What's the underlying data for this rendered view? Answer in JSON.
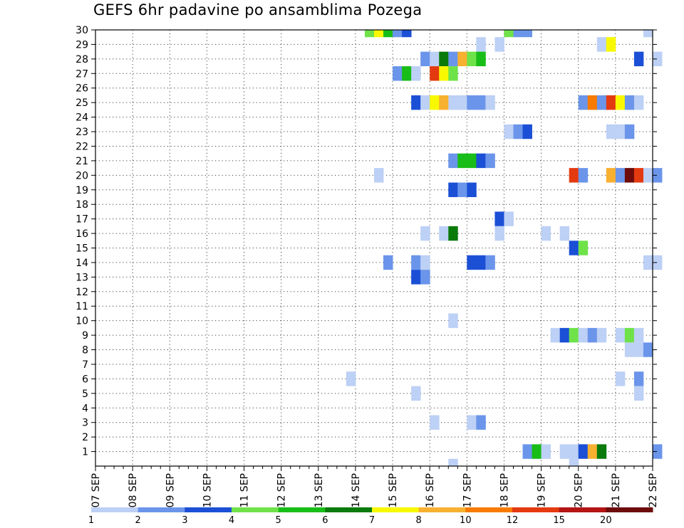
{
  "chart_data": {
    "type": "heatmap",
    "title": "GEFS 6hr padavine po ansamblima Pozega",
    "x_ticks": [
      "07 SEP",
      "08 SEP",
      "09 SEP",
      "10 SEP",
      "11 SEP",
      "12 SEP",
      "13 SEP",
      "14 SEP",
      "15 SEP",
      "16 SEP",
      "17 SEP",
      "18 SEP",
      "19 SEP",
      "20 SEP",
      "21 SEP",
      "22 SEP"
    ],
    "x_unit_steps_per_day": 4,
    "y_ticks": [
      "1",
      "2",
      "3",
      "4",
      "5",
      "6",
      "7",
      "8",
      "9",
      "10",
      "11",
      "12",
      "13",
      "14",
      "15",
      "16",
      "17",
      "18",
      "19",
      "20",
      "21",
      "22",
      "23",
      "24",
      "25",
      "26",
      "27",
      "28",
      "29",
      "30"
    ],
    "y_range": [
      0,
      30
    ],
    "grid": true,
    "legend": {
      "placement": "bottom",
      "labels": [
        "1",
        "2",
        "3",
        "4",
        "5",
        "6",
        "7",
        "8",
        "10",
        "12",
        "15",
        "20"
      ],
      "colors": [
        "#bdd0f5",
        "#6b95ea",
        "#1b4fd6",
        "#6fe24a",
        "#18bd18",
        "#0a7a0a",
        "#f8f800",
        "#f8b030",
        "#f87b00",
        "#e43a10",
        "#b41414",
        "#6e0c0c"
      ]
    },
    "bin_colors": [
      "#bdd0f5",
      "#6b95ea",
      "#1b4fd6",
      "#6fe24a",
      "#18bd18",
      "#0a7a0a",
      "#f8f800",
      "#f8b030",
      "#f87b00",
      "#e43a10",
      "#b41414",
      "#6e0c0c"
    ],
    "cells": [
      [
        29,
        30,
        4
      ],
      [
        30,
        30,
        7
      ],
      [
        31,
        30,
        5
      ],
      [
        32,
        30,
        2
      ],
      [
        33,
        30,
        3
      ],
      [
        44,
        30,
        4
      ],
      [
        45,
        30,
        2
      ],
      [
        46,
        30,
        2
      ],
      [
        59,
        30,
        1
      ],
      [
        41,
        29,
        1
      ],
      [
        43,
        29,
        1
      ],
      [
        54,
        29,
        1
      ],
      [
        55,
        29,
        7
      ],
      [
        35,
        28,
        2
      ],
      [
        36,
        28,
        1
      ],
      [
        37,
        28,
        6
      ],
      [
        38,
        28,
        2
      ],
      [
        39,
        28,
        8
      ],
      [
        40,
        28,
        4
      ],
      [
        41,
        28,
        5
      ],
      [
        58,
        28,
        3
      ],
      [
        60,
        28,
        1
      ],
      [
        32,
        27,
        2
      ],
      [
        33,
        27,
        5
      ],
      [
        34,
        27,
        1
      ],
      [
        36,
        27,
        10
      ],
      [
        37,
        27,
        7
      ],
      [
        38,
        27,
        4
      ],
      [
        34,
        25,
        3
      ],
      [
        35,
        25,
        1
      ],
      [
        36,
        25,
        7
      ],
      [
        37,
        25,
        8
      ],
      [
        38,
        25,
        1
      ],
      [
        39,
        25,
        1
      ],
      [
        40,
        25,
        2
      ],
      [
        41,
        25,
        2
      ],
      [
        42,
        25,
        1
      ],
      [
        52,
        25,
        2
      ],
      [
        53,
        25,
        9
      ],
      [
        54,
        25,
        2
      ],
      [
        55,
        25,
        10
      ],
      [
        56,
        25,
        7
      ],
      [
        57,
        25,
        2
      ],
      [
        58,
        25,
        1
      ],
      [
        44,
        23,
        1
      ],
      [
        45,
        23,
        2
      ],
      [
        46,
        23,
        3
      ],
      [
        55,
        23,
        1
      ],
      [
        56,
        23,
        1
      ],
      [
        57,
        23,
        2
      ],
      [
        38,
        21,
        2
      ],
      [
        39,
        21,
        5
      ],
      [
        40,
        21,
        5
      ],
      [
        41,
        21,
        3
      ],
      [
        42,
        21,
        2
      ],
      [
        30,
        20,
        1
      ],
      [
        51,
        20,
        10
      ],
      [
        52,
        20,
        2
      ],
      [
        55,
        20,
        8
      ],
      [
        56,
        20,
        2
      ],
      [
        57,
        20,
        12
      ],
      [
        58,
        20,
        10
      ],
      [
        59,
        20,
        1
      ],
      [
        60,
        20,
        2
      ],
      [
        38,
        19,
        3
      ],
      [
        39,
        19,
        2
      ],
      [
        40,
        19,
        3
      ],
      [
        43,
        17,
        3
      ],
      [
        44,
        17,
        1
      ],
      [
        35,
        16,
        1
      ],
      [
        37,
        16,
        1
      ],
      [
        38,
        16,
        6
      ],
      [
        43,
        16,
        1
      ],
      [
        48,
        16,
        1
      ],
      [
        50,
        16,
        1
      ],
      [
        51,
        15,
        3
      ],
      [
        52,
        15,
        4
      ],
      [
        31,
        14,
        2
      ],
      [
        34,
        14,
        2
      ],
      [
        35,
        14,
        1
      ],
      [
        40,
        14,
        3
      ],
      [
        41,
        14,
        3
      ],
      [
        42,
        14,
        2
      ],
      [
        59,
        14,
        1
      ],
      [
        60,
        14,
        1
      ],
      [
        34,
        13,
        3
      ],
      [
        35,
        13,
        2
      ],
      [
        38,
        10,
        1
      ],
      [
        49,
        9,
        1
      ],
      [
        50,
        9,
        3
      ],
      [
        51,
        9,
        4
      ],
      [
        52,
        9,
        1
      ],
      [
        53,
        9,
        2
      ],
      [
        54,
        9,
        1
      ],
      [
        56,
        9,
        1
      ],
      [
        57,
        9,
        4
      ],
      [
        58,
        9,
        1
      ],
      [
        57,
        8,
        1
      ],
      [
        58,
        8,
        1
      ],
      [
        59,
        8,
        2
      ],
      [
        27,
        6,
        1
      ],
      [
        56,
        6,
        1
      ],
      [
        58,
        6,
        2
      ],
      [
        34,
        5,
        1
      ],
      [
        58,
        5,
        1
      ],
      [
        36,
        3,
        1
      ],
      [
        40,
        3,
        1
      ],
      [
        41,
        3,
        2
      ],
      [
        46,
        1,
        2
      ],
      [
        47,
        1,
        5
      ],
      [
        48,
        1,
        1
      ],
      [
        50,
        1,
        1
      ],
      [
        51,
        1,
        1
      ],
      [
        52,
        1,
        3
      ],
      [
        53,
        1,
        8
      ],
      [
        54,
        1,
        6
      ],
      [
        60,
        1,
        2
      ],
      [
        38,
        0,
        1
      ],
      [
        51,
        0,
        1
      ]
    ]
  }
}
